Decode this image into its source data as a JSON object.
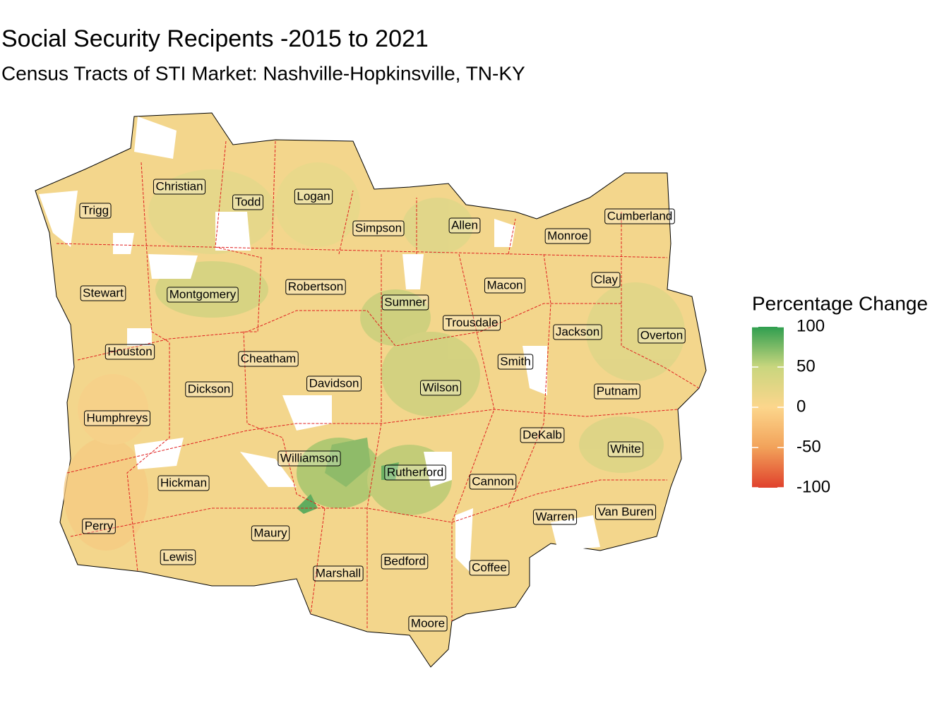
{
  "header": {
    "title": "Social Security Recipents -2015 to 2021",
    "subtitle": "Census Tracts of STI Market: Nashville-Hopkinsville, TN-KY"
  },
  "counties": [
    "Trigg",
    "Christian",
    "Todd",
    "Logan",
    "Simpson",
    "Allen",
    "Monroe",
    "Cumberland",
    "Stewart",
    "Montgomery",
    "Robertson",
    "Sumner",
    "Macon",
    "Clay",
    "Trousdale",
    "Jackson",
    "Overton",
    "Houston",
    "Cheatham",
    "Smith",
    "Davidson",
    "Wilson",
    "Dickson",
    "Putnam",
    "Humphreys",
    "DeKalb",
    "White",
    "Williamson",
    "Rutherford",
    "Cannon",
    "Hickman",
    "Van Buren",
    "Warren",
    "Perry",
    "Maury",
    "Lewis",
    "Bedford",
    "Coffee",
    "Marshall",
    "Moore"
  ],
  "legend": {
    "title": "Percentage Change",
    "lim": [
      -100,
      100
    ],
    "ticks": [
      100,
      50,
      0,
      -50,
      -100
    ],
    "colors": [
      "#2f9e4f",
      "#c9d67e",
      "#fcd68c",
      "#f2a25a",
      "#e0412c"
    ]
  }
}
